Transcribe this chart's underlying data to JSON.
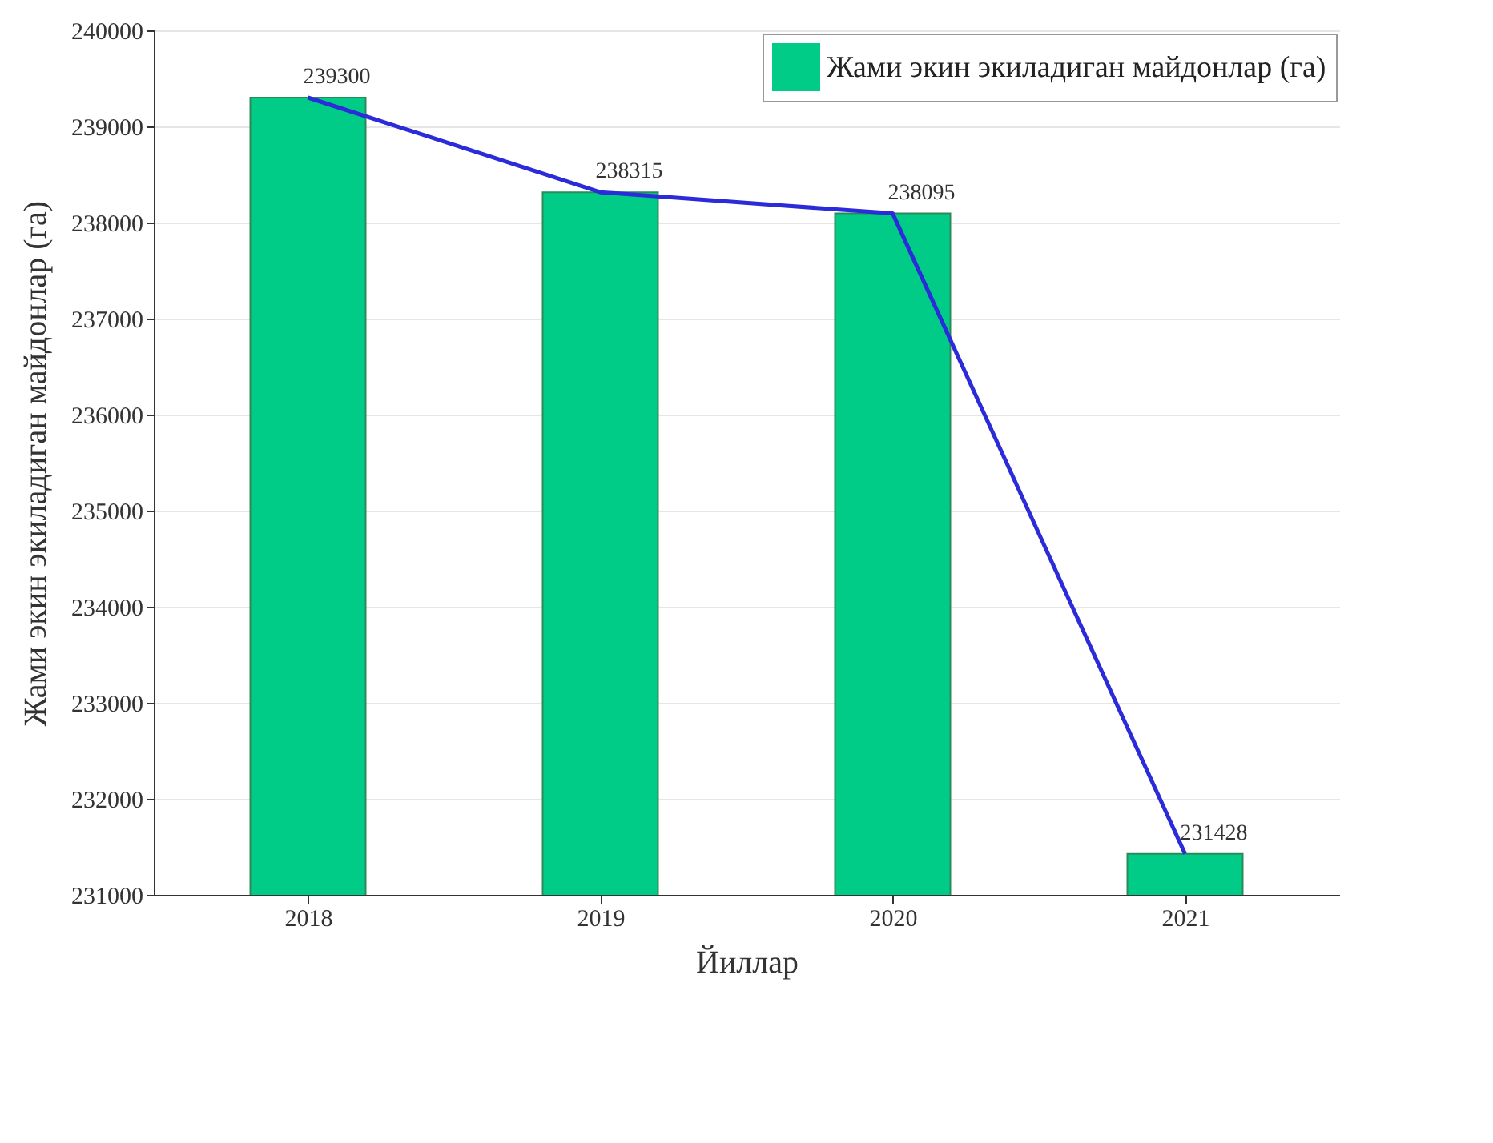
{
  "chart_data": {
    "type": "bar",
    "xlabel": "Йиллар",
    "ylabel": "Жами экин экиладиган майдонлар (га)",
    "categories": [
      "2018",
      "2019",
      "2020",
      "2021"
    ],
    "series": [
      {
        "name": "Жами экин экиладиган майдонлар (га)",
        "color": "#00cc88",
        "values": [
          239300,
          238315,
          238095,
          231428
        ],
        "value_labels": [
          "239300",
          "238315",
          "238095",
          "231428"
        ]
      },
      {
        "type": "line",
        "color": "#2b2bd9",
        "values": [
          239300,
          238315,
          238095,
          231428
        ]
      }
    ],
    "ylim": [
      231000,
      240000
    ],
    "yticks": [
      231000,
      232000,
      233000,
      234000,
      235000,
      236000,
      237000,
      238000,
      239000,
      240000
    ],
    "grid": "y",
    "legend": "top right"
  }
}
